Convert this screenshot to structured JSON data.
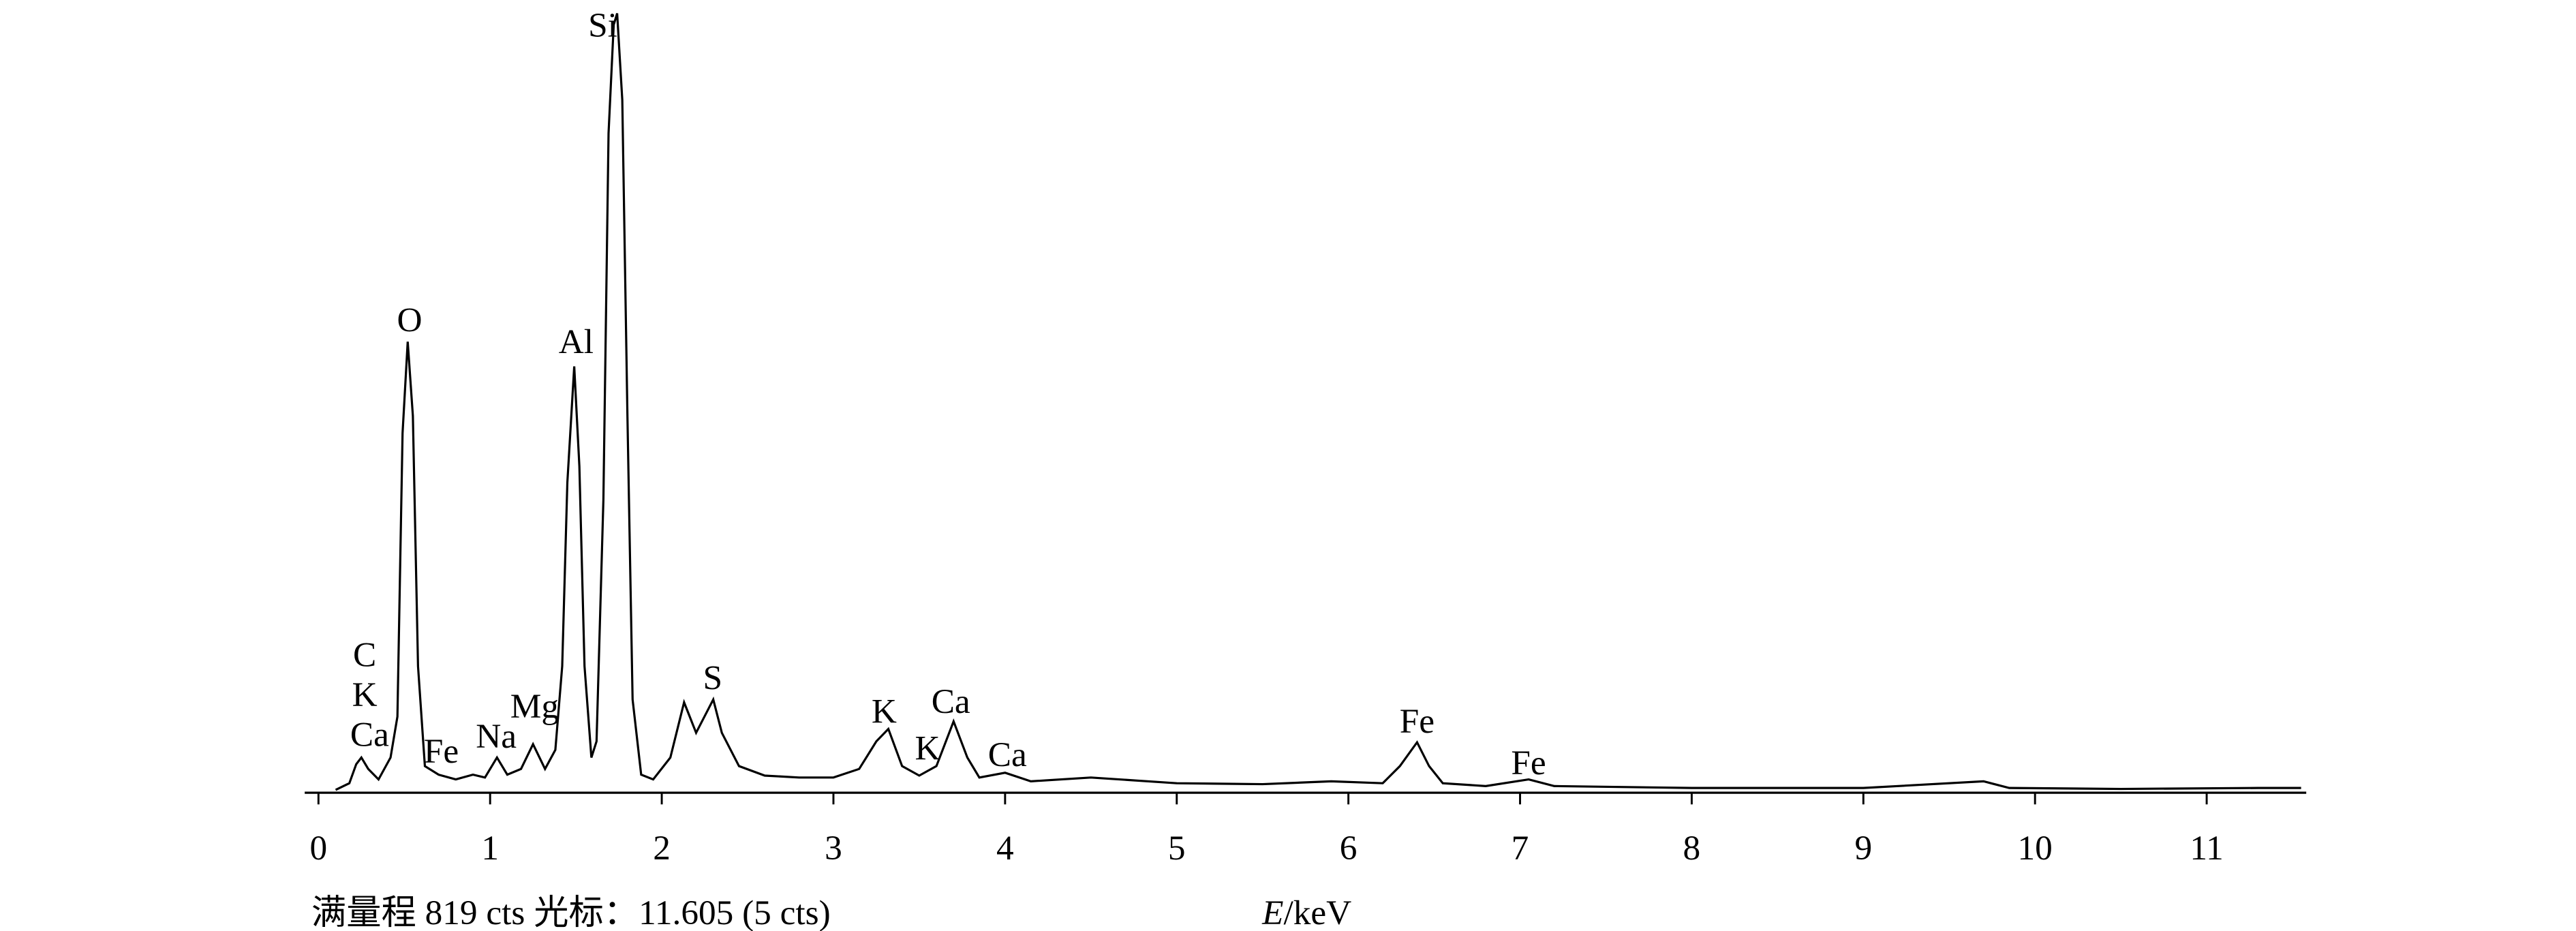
{
  "chart_data": {
    "type": "line",
    "x_label_symbol": "E",
    "x_label_unit": "/keV",
    "footer": "满量程 819 cts 光标：11.605 (5 cts)",
    "x": [
      0.1,
      0.18,
      0.22,
      0.25,
      0.29,
      0.35,
      0.42,
      0.46,
      0.49,
      0.52,
      0.55,
      0.58,
      0.62,
      0.7,
      0.8,
      0.9,
      0.97,
      1.04,
      1.1,
      1.18,
      1.25,
      1.32,
      1.38,
      1.42,
      1.45,
      1.49,
      1.52,
      1.55,
      1.59,
      1.62,
      1.66,
      1.69,
      1.72,
      1.74,
      1.77,
      1.8,
      1.83,
      1.88,
      1.95,
      2.05,
      2.13,
      2.2,
      2.3,
      2.35,
      2.45,
      2.6,
      2.8,
      3.0,
      3.15,
      3.25,
      3.32,
      3.4,
      3.5,
      3.6,
      3.7,
      3.78,
      3.85,
      4.0,
      4.15,
      4.5,
      5.0,
      5.5,
      5.9,
      6.2,
      6.3,
      6.4,
      6.47,
      6.55,
      6.8,
      7.05,
      7.2,
      8.0,
      9.0,
      9.7,
      9.85,
      10.5,
      11.3,
      11.55
    ],
    "series": [
      {
        "color": "#000000",
        "values": [
          3,
          10,
          30,
          37,
          25,
          14,
          37,
          80,
          378,
          474,
          396,
          133,
          28,
          19,
          14,
          19,
          16,
          37,
          19,
          25,
          51,
          25,
          45,
          133,
          326,
          448,
          343,
          133,
          37,
          54,
          308,
          693,
          807,
          819,
          728,
          396,
          98,
          19,
          14,
          37,
          95,
          63,
          98,
          63,
          28,
          18,
          16,
          16,
          25,
          54,
          67,
          28,
          18,
          28,
          75,
          37,
          16,
          21,
          12,
          16,
          10,
          9,
          12,
          10,
          28,
          53,
          28,
          10,
          7,
          14,
          7,
          5,
          5,
          12,
          5,
          4,
          5,
          5
        ]
      }
    ],
    "xlim": [
      -0.08,
      11.58
    ],
    "ylim": [
      0,
      819
    ],
    "xticks": [
      0,
      1,
      2,
      3,
      4,
      5,
      6,
      7,
      8,
      9,
      10,
      11
    ],
    "annotations": [
      "Si",
      "O",
      "Al",
      "C",
      "K",
      "Ca",
      "Fe",
      "Na",
      "Mg",
      "S",
      "K",
      "K",
      "Ca",
      "Ca",
      "Fe",
      "Fe"
    ]
  }
}
